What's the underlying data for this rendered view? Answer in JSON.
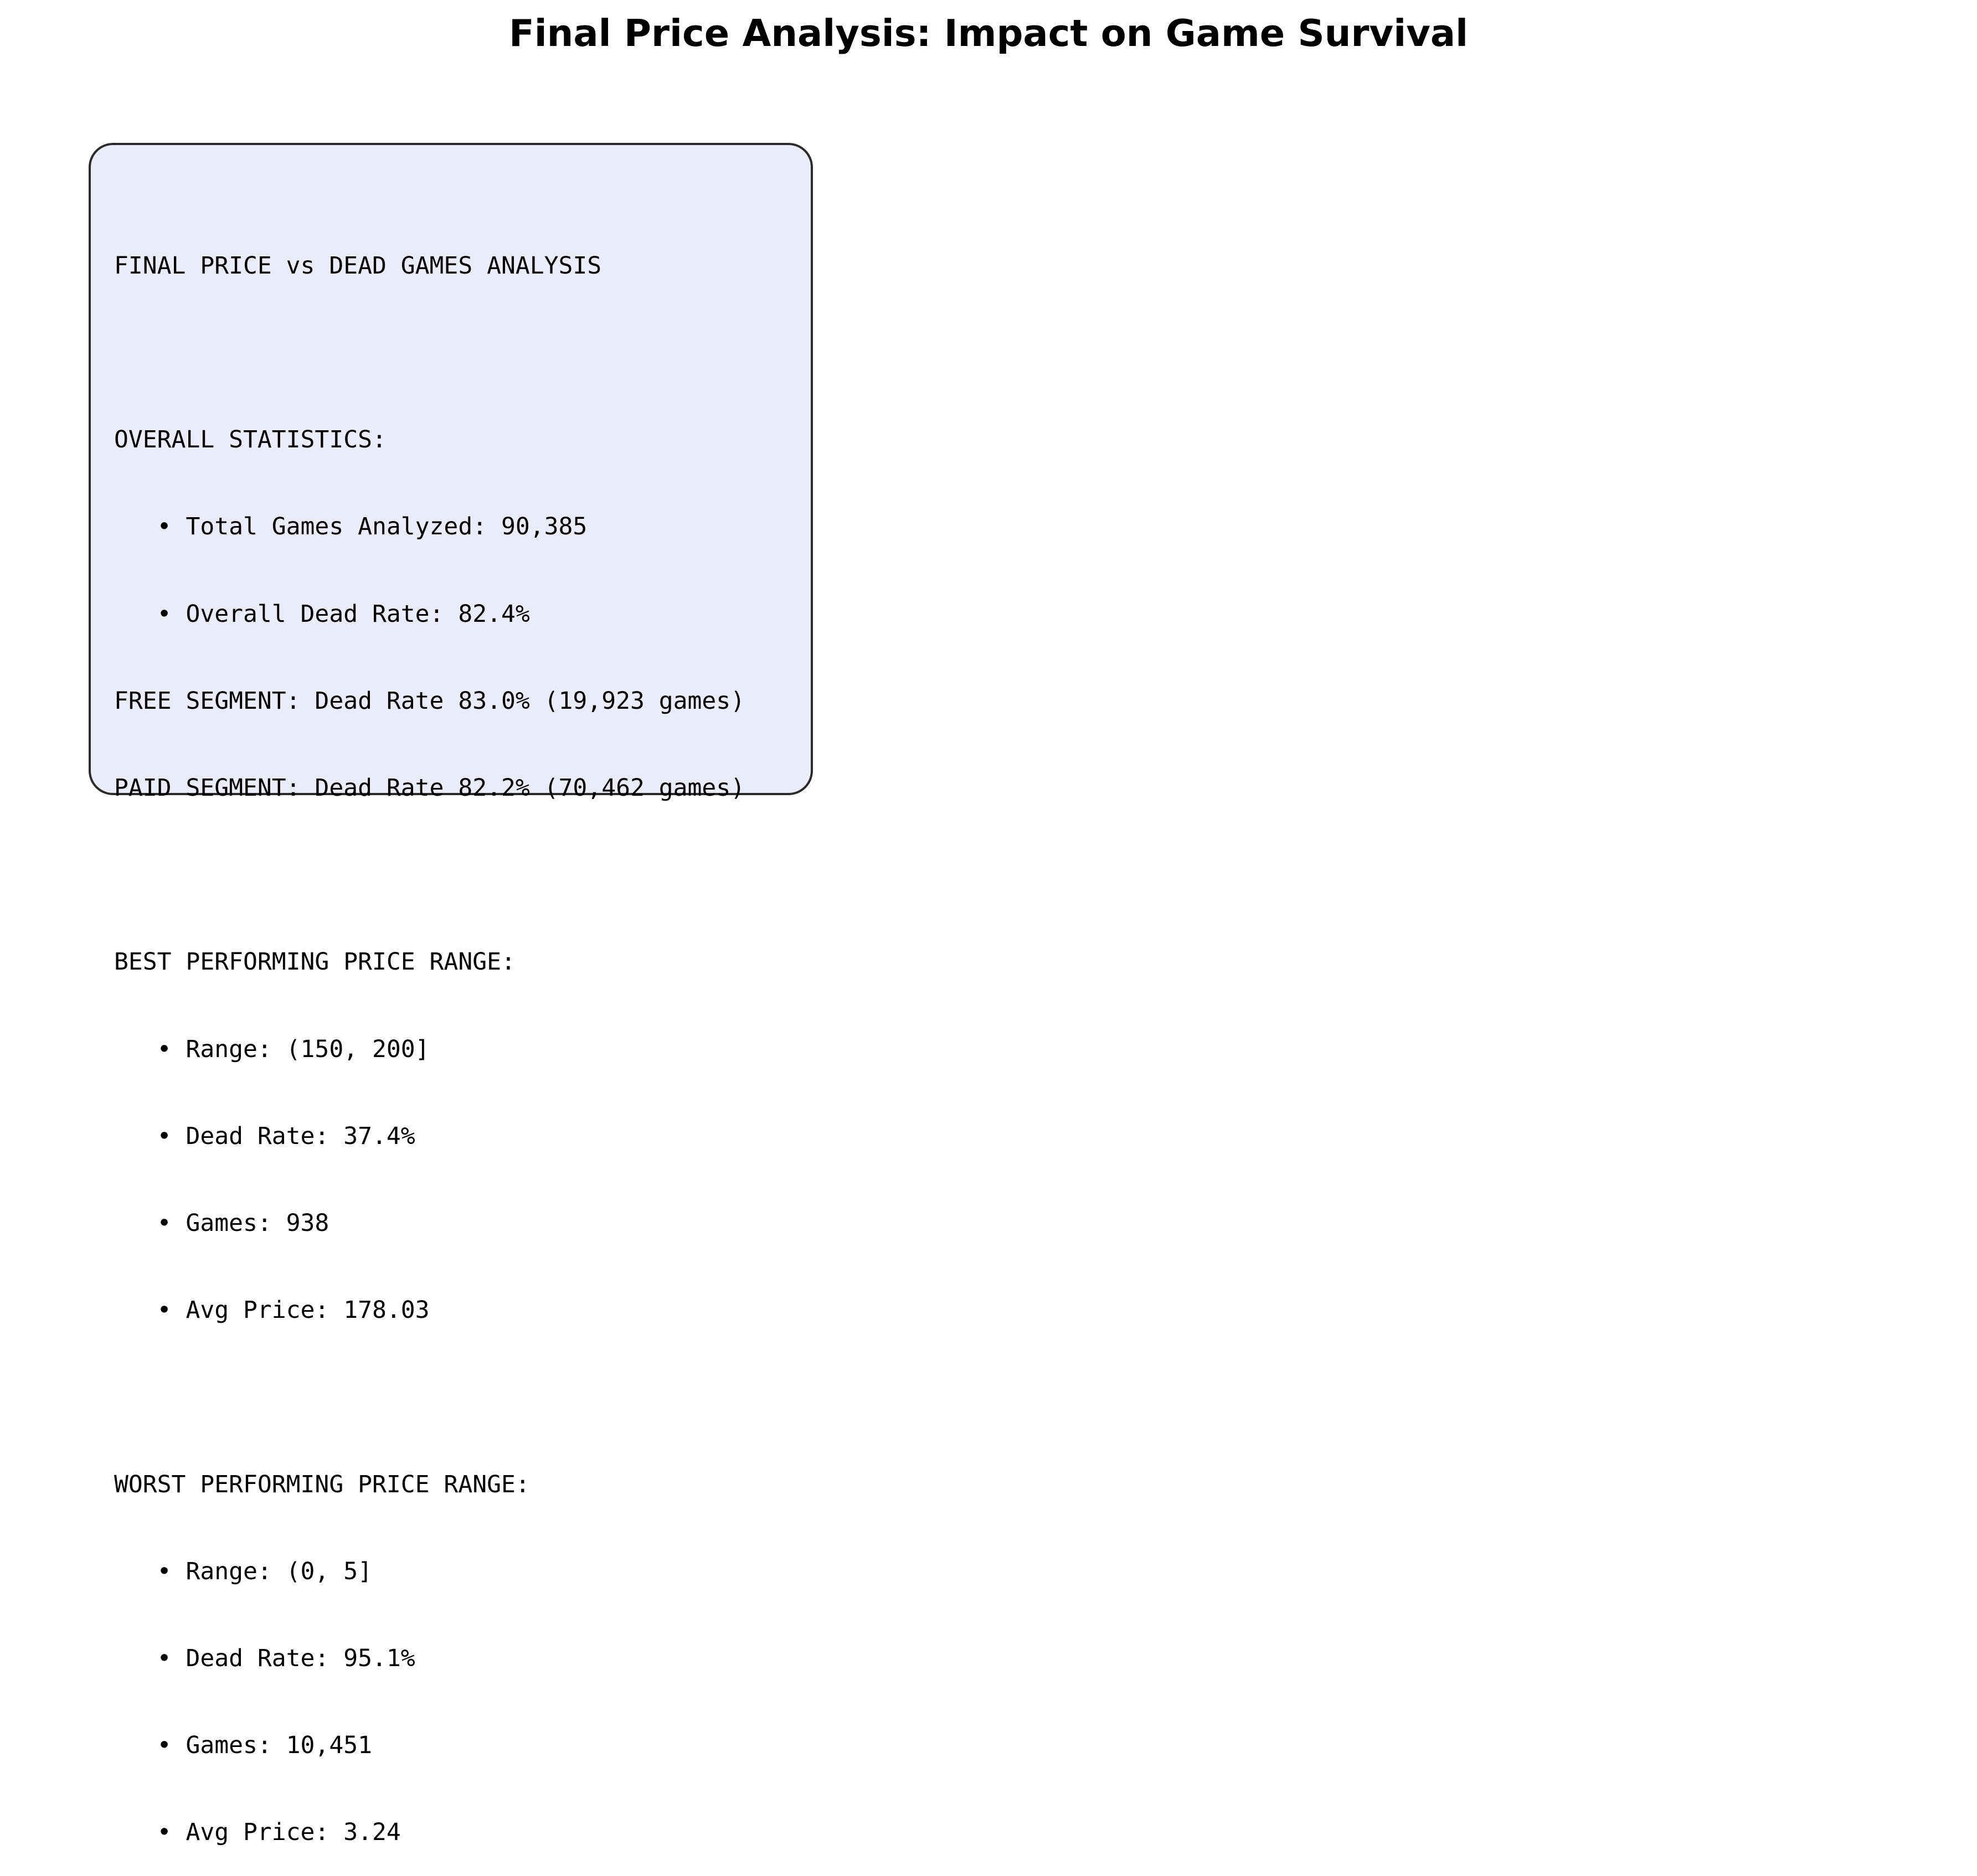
{
  "chart_data": {
    "type": "table",
    "title": "Final Price Analysis: Impact on Game Survival",
    "text_box": {
      "lines": [
        "",
        "FINAL PRICE vs DEAD GAMES ANALYSIS",
        "",
        "OVERALL STATISTICS:",
        "   • Total Games Analyzed: 90,385",
        "   • Overall Dead Rate: 82.4%",
        "FREE SEGMENT: Dead Rate 83.0% (19,923 games)",
        "PAID SEGMENT: Dead Rate 82.2% (70,462 games)",
        "",
        "BEST PERFORMING PRICE RANGE:",
        "   • Range: (150, 200]",
        "   • Dead Rate: 37.4%",
        "   • Games: 938",
        "   • Avg Price: 178.03",
        "",
        "WORST PERFORMING PRICE RANGE:",
        "   • Range: (0, 5]",
        "   • Dead Rate: 95.1%",
        "   • Games: 10,451",
        "   • Avg Price: 3.24",
        ""
      ],
      "background_color": "#ebebfa",
      "border_color": "#2b2b2b"
    },
    "statistics": {
      "overall": {
        "total_games_analyzed": 90385,
        "overall_dead_rate_pct": 82.4
      },
      "segments": [
        {
          "name": "FREE SEGMENT",
          "dead_rate_pct": 83.0,
          "games": 19923
        },
        {
          "name": "PAID SEGMENT",
          "dead_rate_pct": 82.2,
          "games": 70462
        }
      ],
      "best_price_range": {
        "range": "(150, 200]",
        "dead_rate_pct": 37.4,
        "games": 938,
        "avg_price": 178.03
      },
      "worst_price_range": {
        "range": "(0, 5]",
        "dead_rate_pct": 95.1,
        "games": 10451,
        "avg_price": 3.24
      }
    }
  }
}
